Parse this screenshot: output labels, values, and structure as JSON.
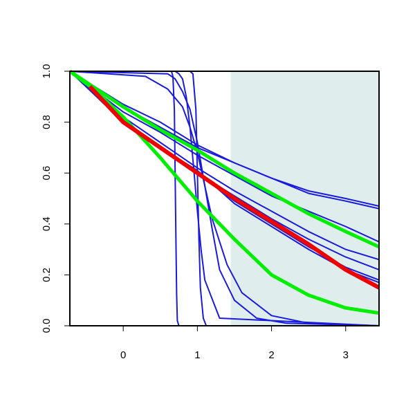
{
  "chart_data": {
    "type": "line",
    "title": "",
    "xlabel": "",
    "ylabel": "",
    "xlim": [
      -0.72,
      3.45
    ],
    "ylim": [
      0.0,
      1.0
    ],
    "x_ticks": [
      0,
      1,
      2,
      3
    ],
    "y_ticks": [
      0.0,
      0.2,
      0.4,
      0.6,
      0.8,
      1.0
    ],
    "x_tick_labels": [
      "0",
      "1",
      "2",
      "3"
    ],
    "y_tick_labels": [
      "0.0",
      "0.2",
      "0.4",
      "0.6",
      "0.8",
      "1.0"
    ],
    "grid": false,
    "legend": "none",
    "shaded_region": {
      "x_from": 1.45,
      "x_to": 3.45,
      "color": "#e0eded"
    },
    "colors": {
      "blue": "#1a1adb",
      "green": "#00ee00",
      "red": "#ee0000",
      "axis": "#000000"
    },
    "series": [
      {
        "color": "#1a1adb",
        "kind": "blue",
        "x": [
          -0.72,
          0.0,
          0.5,
          1.0,
          1.5,
          2.0,
          2.5,
          3.0,
          3.45
        ],
        "y": [
          1.0,
          0.86,
          0.78,
          0.7,
          0.64,
          0.58,
          0.53,
          0.5,
          0.47
        ]
      },
      {
        "color": "#1a1adb",
        "kind": "blue",
        "x": [
          -0.72,
          0.0,
          0.5,
          1.0,
          1.5,
          2.0,
          2.5,
          3.0,
          3.45
        ],
        "y": [
          1.0,
          0.87,
          0.8,
          0.71,
          0.64,
          0.58,
          0.52,
          0.49,
          0.46
        ]
      },
      {
        "color": "#1a1adb",
        "kind": "blue",
        "x": [
          -0.72,
          0.0,
          0.5,
          1.0,
          1.5,
          2.0,
          2.5,
          3.0,
          3.45
        ],
        "y": [
          1.0,
          0.84,
          0.76,
          0.67,
          0.59,
          0.51,
          0.45,
          0.39,
          0.33
        ]
      },
      {
        "color": "#1a1adb",
        "kind": "blue",
        "x": [
          -0.72,
          0.0,
          0.5,
          1.0,
          1.5,
          2.0,
          2.5,
          3.0,
          3.45
        ],
        "y": [
          1.0,
          0.82,
          0.72,
          0.62,
          0.53,
          0.45,
          0.37,
          0.3,
          0.26
        ]
      },
      {
        "color": "#1a1adb",
        "kind": "blue",
        "x": [
          -0.72,
          0.0,
          0.5,
          1.0,
          1.5,
          2.0,
          2.5,
          3.0,
          3.45
        ],
        "y": [
          1.0,
          0.8,
          0.7,
          0.6,
          0.51,
          0.42,
          0.34,
          0.27,
          0.22
        ]
      },
      {
        "color": "#1a1adb",
        "kind": "blue",
        "x": [
          -0.72,
          0.0,
          0.5,
          1.0,
          1.5,
          2.0,
          2.5,
          3.0,
          3.45
        ],
        "y": [
          1.0,
          0.81,
          0.7,
          0.6,
          0.49,
          0.4,
          0.31,
          0.23,
          0.18
        ]
      },
      {
        "color": "#1a1adb",
        "kind": "blue",
        "x": [
          -0.72,
          0.0,
          0.5,
          1.0,
          1.5,
          2.0,
          2.5,
          3.0,
          3.45
        ],
        "y": [
          1.0,
          0.81,
          0.7,
          0.61,
          0.48,
          0.39,
          0.3,
          0.22,
          0.17
        ]
      },
      {
        "color": "#1a1adb",
        "kind": "blue",
        "x": [
          -0.72,
          0.3,
          0.6,
          0.8,
          0.9,
          1.0,
          1.1,
          1.2,
          1.4,
          1.6,
          2.0,
          2.5,
          3.45
        ],
        "y": [
          1.0,
          0.98,
          0.93,
          0.86,
          0.78,
          0.68,
          0.55,
          0.42,
          0.24,
          0.13,
          0.04,
          0.01,
          0.0
        ]
      },
      {
        "color": "#1a1adb",
        "kind": "blue",
        "x": [
          -0.72,
          0.6,
          0.7,
          0.8,
          0.9,
          1.0,
          1.1,
          1.2,
          1.3,
          1.5,
          1.8,
          2.2,
          3.45
        ],
        "y": [
          1.0,
          0.99,
          0.97,
          0.92,
          0.85,
          0.72,
          0.55,
          0.38,
          0.22,
          0.1,
          0.03,
          0.01,
          0.0
        ]
      },
      {
        "color": "#1a1adb",
        "kind": "blue",
        "x": [
          -0.72,
          0.7,
          0.75,
          0.8,
          0.85,
          0.9,
          0.95,
          1.0,
          1.05,
          1.1,
          1.3,
          3.45
        ],
        "y": [
          1.0,
          1.0,
          0.99,
          0.97,
          0.9,
          0.78,
          0.62,
          0.45,
          0.3,
          0.18,
          0.03,
          0.0
        ]
      },
      {
        "color": "#1a1adb",
        "kind": "blue",
        "x": [
          -0.72,
          0.9,
          0.94,
          0.98,
          1.0,
          1.02,
          1.04,
          1.08,
          1.12,
          3.45
        ],
        "y": [
          1.0,
          1.0,
          0.99,
          0.85,
          0.6,
          0.35,
          0.15,
          0.03,
          0.0,
          0.0
        ]
      },
      {
        "color": "#1a1adb",
        "kind": "blue",
        "x": [
          -0.72,
          0.65,
          0.67,
          0.69,
          0.7,
          0.71,
          0.72,
          0.73,
          0.75,
          3.45
        ],
        "y": [
          1.0,
          1.0,
          0.98,
          0.85,
          0.6,
          0.35,
          0.12,
          0.02,
          0.0,
          0.0
        ]
      },
      {
        "color": "#00ee00",
        "kind": "green",
        "x": [
          -0.72,
          0.0,
          0.5,
          1.0,
          1.5,
          2.0,
          2.5,
          3.0,
          3.45
        ],
        "y": [
          1.0,
          0.86,
          0.77,
          0.69,
          0.6,
          0.52,
          0.44,
          0.37,
          0.31
        ]
      },
      {
        "color": "#00ee00",
        "kind": "green",
        "x": [
          -0.72,
          -0.4,
          0.0,
          0.5,
          1.0,
          1.5,
          2.0,
          2.5,
          3.0,
          3.45
        ],
        "y": [
          1.0,
          0.93,
          0.82,
          0.66,
          0.49,
          0.34,
          0.2,
          0.12,
          0.07,
          0.05
        ]
      },
      {
        "color": "#ee0000",
        "kind": "red",
        "x": [
          -0.45,
          0.0,
          0.5,
          1.0,
          1.5,
          2.0,
          2.5,
          3.0,
          3.45
        ],
        "y": [
          0.94,
          0.8,
          0.7,
          0.6,
          0.5,
          0.41,
          0.32,
          0.22,
          0.15
        ]
      }
    ]
  }
}
